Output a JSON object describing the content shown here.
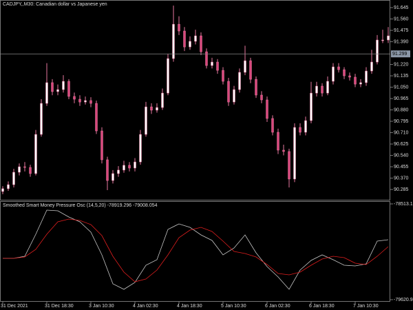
{
  "chart_data": [
    {
      "type": "candlestick",
      "title": "CADJPY,,M30:  Canadian dollar vs Japanese yen",
      "categories": [
        "31 Dec 2021",
        null,
        null,
        null,
        null,
        null,
        null,
        null,
        "31 Dec 18:30",
        null,
        null,
        null,
        null,
        null,
        null,
        null,
        "3 Jan 10:30",
        null,
        null,
        null,
        null,
        null,
        null,
        null,
        "4 Jan 02:30",
        null,
        null,
        null,
        null,
        null,
        null,
        null,
        "4 Jan 18:30",
        null,
        null,
        null,
        null,
        null,
        null,
        null,
        "5 Jan 10:30",
        null,
        null,
        null,
        null,
        null,
        null,
        null,
        "6 Jan 02:30",
        null,
        null,
        null,
        null,
        null,
        null,
        null,
        "6 Jan 18:30",
        null,
        null,
        null,
        null,
        null,
        null,
        null,
        "7 Jan 10:30",
        null,
        null,
        null,
        null,
        null,
        null
      ],
      "candles": [
        [
          90.27,
          90.31,
          90.25,
          90.291
        ],
        [
          90.291,
          90.345,
          90.275,
          90.321
        ],
        [
          90.321,
          90.44,
          90.3,
          90.414
        ],
        [
          90.414,
          90.48,
          90.39,
          90.455
        ],
        [
          90.455,
          90.49,
          90.42,
          90.45
        ],
        [
          90.45,
          90.47,
          90.38,
          90.404
        ],
        [
          90.404,
          90.73,
          90.39,
          90.697
        ],
        [
          90.697,
          90.96,
          90.68,
          90.929
        ],
        [
          90.929,
          91.23,
          90.91,
          91.084
        ],
        [
          91.084,
          91.11,
          90.99,
          91.017
        ],
        [
          91.017,
          91.07,
          90.99,
          91.032
        ],
        [
          91.032,
          91.14,
          91.01,
          91.094
        ],
        [
          91.094,
          91.11,
          90.96,
          90.981
        ],
        [
          90.981,
          91.01,
          90.93,
          90.96
        ],
        [
          90.96,
          90.99,
          90.91,
          90.939
        ],
        [
          90.939,
          90.98,
          90.92,
          90.95
        ],
        [
          90.95,
          90.975,
          90.9,
          90.929
        ],
        [
          90.929,
          90.95,
          90.7,
          90.723
        ],
        [
          90.723,
          90.75,
          90.48,
          90.507
        ],
        [
          90.507,
          90.53,
          90.28,
          90.352
        ],
        [
          90.352,
          90.43,
          90.33,
          90.404
        ],
        [
          90.404,
          90.46,
          90.38,
          90.43
        ],
        [
          90.43,
          90.5,
          90.41,
          90.466
        ],
        [
          90.466,
          90.49,
          90.42,
          90.445
        ],
        [
          90.445,
          90.52,
          90.42,
          90.491
        ],
        [
          90.491,
          90.73,
          90.47,
          90.697
        ],
        [
          90.697,
          90.94,
          90.68,
          90.903
        ],
        [
          90.903,
          90.93,
          90.85,
          90.878
        ],
        [
          90.878,
          90.93,
          90.86,
          90.898
        ],
        [
          90.898,
          91.04,
          90.88,
          91.006
        ],
        [
          91.006,
          91.3,
          90.99,
          91.264
        ],
        [
          91.264,
          91.66,
          91.24,
          91.521
        ],
        [
          91.521,
          91.58,
          91.44,
          91.47
        ],
        [
          91.47,
          91.5,
          91.32,
          91.351
        ],
        [
          91.351,
          91.43,
          91.33,
          91.393
        ],
        [
          91.393,
          91.48,
          91.37,
          91.434
        ],
        [
          91.434,
          91.46,
          91.29,
          91.315
        ],
        [
          91.315,
          91.34,
          91.19,
          91.212
        ],
        [
          91.212,
          91.27,
          91.19,
          91.238
        ],
        [
          91.238,
          91.26,
          91.15,
          91.176
        ],
        [
          91.176,
          91.2,
          91.07,
          91.094
        ],
        [
          91.094,
          91.12,
          90.91,
          90.939
        ],
        [
          90.939,
          91.06,
          90.92,
          91.032
        ],
        [
          91.032,
          91.19,
          91.01,
          91.161
        ],
        [
          91.161,
          91.36,
          91.14,
          91.248
        ],
        [
          91.248,
          91.27,
          91.08,
          91.109
        ],
        [
          91.109,
          91.13,
          90.97,
          90.991
        ],
        [
          90.991,
          91.02,
          90.93,
          90.955
        ],
        [
          90.955,
          90.98,
          90.79,
          90.816
        ],
        [
          90.816,
          90.84,
          90.69,
          90.713
        ],
        [
          90.713,
          90.74,
          90.55,
          90.579
        ],
        [
          90.579,
          90.62,
          90.54,
          90.569
        ],
        [
          90.569,
          90.59,
          90.3,
          90.363
        ],
        [
          90.363,
          90.78,
          90.34,
          90.749
        ],
        [
          90.749,
          90.78,
          90.69,
          90.713
        ],
        [
          90.713,
          90.83,
          90.69,
          90.8
        ],
        [
          90.8,
          91.09,
          90.78,
          91.006
        ],
        [
          91.006,
          91.09,
          90.98,
          91.058
        ],
        [
          91.058,
          91.08,
          90.98,
          91.006
        ],
        [
          91.006,
          91.13,
          90.99,
          91.094
        ],
        [
          91.094,
          91.23,
          91.07,
          91.202
        ],
        [
          91.202,
          91.23,
          91.16,
          91.181
        ],
        [
          91.181,
          91.2,
          91.11,
          91.135
        ],
        [
          91.135,
          91.16,
          91.1,
          91.125
        ],
        [
          91.125,
          91.15,
          91.05,
          91.073
        ],
        [
          91.073,
          91.11,
          91.05,
          91.084
        ],
        [
          91.084,
          91.2,
          91.06,
          91.171
        ],
        [
          91.171,
          91.33,
          91.15,
          91.238
        ],
        [
          91.238,
          91.44,
          91.22,
          91.403
        ],
        [
          91.403,
          91.48,
          91.38,
          91.403
        ],
        [
          91.403,
          91.5,
          91.38,
          91.434
        ]
      ],
      "up_color": "#ffffff",
      "down_color": "#d9467c",
      "wick_color": "#e8799f",
      "ylim": [
        90.208,
        91.702
      ],
      "yticks": [
        91.645,
        {
          "value": 91.56,
          "label": "91.560"
        },
        91.475,
        {
          "value": 91.39,
          "label": "91.390"
        },
        {
          "value": 91.22,
          "label": "91.220"
        },
        91.135,
        {
          "value": 91.05,
          "label": "91.050"
        },
        90.965,
        {
          "value": 90.88,
          "label": "90.880"
        },
        90.795,
        {
          "value": 90.71,
          "label": "90.710"
        },
        90.625,
        {
          "value": 90.54,
          "label": "90.540"
        },
        90.455,
        {
          "value": 90.37,
          "label": "90.370"
        },
        90.285
      ],
      "bid_line": 91.299
    },
    {
      "type": "line",
      "title": "Smoothed Smart Money Pressure Osc (14,5,20) -78919.296 -79008.054",
      "series": [
        {
          "color": "#c8c8c8",
          "values": [
            -79142.8,
            -79142.8,
            -79118.9,
            -78863.9,
            -78584.9,
            -78592.9,
            -78664.6,
            -78720.4,
            -78840.0,
            -79103.0,
            -79437.7,
            -79501.5,
            -79421.8,
            -79222.5,
            -79158.8,
            -78808.1,
            -78744.3,
            -78784.2,
            -78871.9,
            -78935.6,
            -79103.0,
            -79023.3,
            -78871.9,
            -79079.1,
            -79238.5,
            -79358.0,
            -79501.5,
            -79278.3,
            -79166.7,
            -79103.0,
            -79158.8,
            -79222.5,
            -79230.5,
            -79206.6,
            -78943.6,
            -78927.6
          ]
        },
        {
          "color": "#e01e1e",
          "values": [
            -79142.8,
            -79142.8,
            -79126.9,
            -79039.2,
            -78863.9,
            -78720.4,
            -78688.5,
            -78704.5,
            -78752.3,
            -78879.8,
            -79118.9,
            -79302.2,
            -79413.8,
            -79381.9,
            -79278.3,
            -79103.0,
            -78903.7,
            -78816.1,
            -78784.2,
            -78832.0,
            -78943.6,
            -79063.1,
            -79087.0,
            -79126.9,
            -79214.6,
            -79318.2,
            -79334.1,
            -79302.2,
            -79222.5,
            -79150.8,
            -79118.9,
            -79134.9,
            -79198.6,
            -79214.6,
            -79118.9,
            -79007.3
          ]
        }
      ],
      "ylim": [
        -79620.93,
        -78513.17
      ],
      "yticks": [
        -78513.17,
        -79620.93
      ]
    }
  ]
}
